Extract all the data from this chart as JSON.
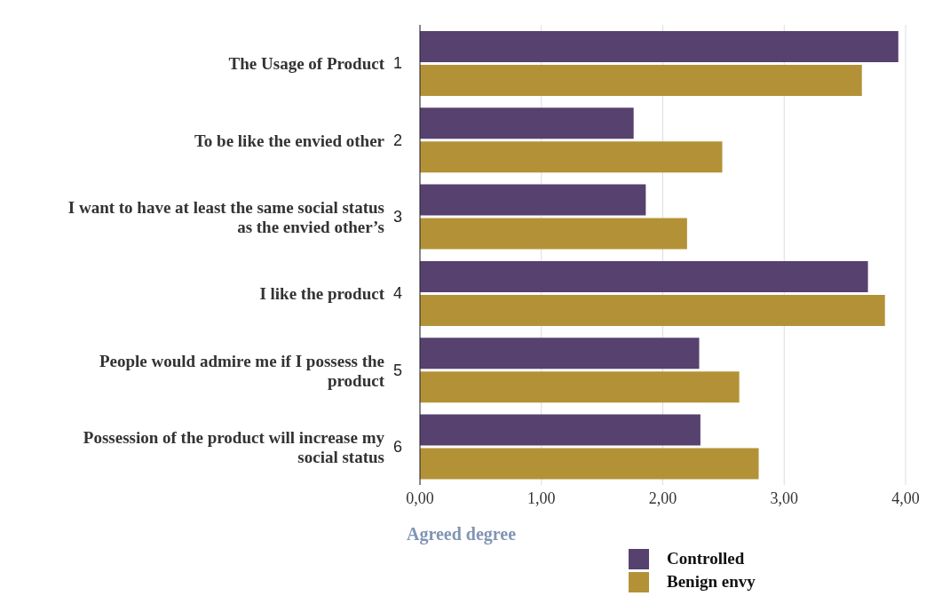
{
  "chart_data": {
    "type": "bar",
    "orientation": "horizontal",
    "xlabel": "Agreed degree",
    "categories": [
      "The Usage of Product 1",
      "To be like the envied other 2",
      "I want to have at least the same social status as the envied other’s 3",
      "I like the product 4",
      "People would admire me if I possess the product 5",
      "Possession of the product will increase my social status 6"
    ],
    "series": [
      {
        "name": "Controlled",
        "color": "#57416f",
        "values": [
          3.94,
          1.76,
          1.86,
          3.69,
          2.3,
          2.31
        ]
      },
      {
        "name": "Benign envy",
        "color": "#b39237",
        "values": [
          3.64,
          2.49,
          2.2,
          3.83,
          2.63,
          2.79
        ]
      }
    ],
    "xlim": [
      0,
      4
    ],
    "xticks": [
      {
        "value": 0,
        "label": "0,00"
      },
      {
        "value": 1,
        "label": "1,00"
      },
      {
        "value": 2,
        "label": "2,00"
      },
      {
        "value": 3,
        "label": "3,00"
      },
      {
        "value": 4,
        "label": "4,00"
      }
    ],
    "grid": "x",
    "legend": "bottom"
  }
}
